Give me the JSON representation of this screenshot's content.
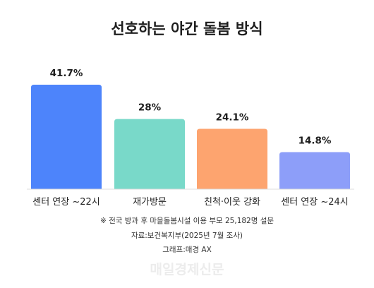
{
  "chart_data": {
    "type": "bar",
    "title": "선호하는 야간 돌봄 방식",
    "categories": [
      "센터 연장 ~22시",
      "재가방문",
      "친척·이웃 강화",
      "센터 연장 ~24시"
    ],
    "values": [
      41.7,
      28,
      24.1,
      14.8
    ],
    "value_labels": [
      "41.7%",
      "28%",
      "24.1%",
      "14.8%"
    ],
    "colors": [
      "#4d84fb",
      "#79d9c9",
      "#fda46f",
      "#8d9ef9"
    ],
    "unit": "%",
    "ylim": [
      0,
      41.7
    ],
    "grid": false,
    "legend": "none"
  },
  "notes": {
    "survey": "※ 전국 방과 후 마을돌봄시설 이용 부모 25,182명 설문",
    "source": "자료:보건복지부(2025년 7월 조사)",
    "graphic": "그래프:매경 AX"
  },
  "watermark": "매일경제신문"
}
